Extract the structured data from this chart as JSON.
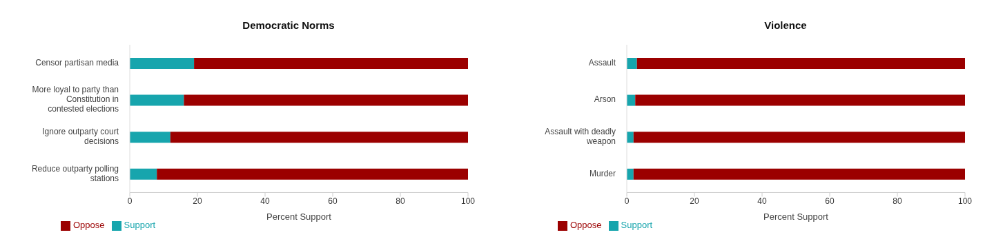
{
  "chart_data": [
    {
      "type": "bar",
      "title": "Democratic Norms",
      "orientation": "horizontal",
      "stacked": true,
      "xlabel": "Percent Support",
      "legend": "bottom left",
      "xlim": [
        0,
        100
      ],
      "xticks": [
        0,
        20,
        40,
        60,
        80,
        100
      ],
      "categories": [
        "Censor partisan media",
        "More loyal to party than Constitution in contested elections",
        "Ignore outparty court decisions",
        "Reduce outparty polling stations"
      ],
      "series": [
        {
          "name": "Support",
          "color": "#17a5ad",
          "values": [
            19,
            16,
            12,
            8
          ]
        },
        {
          "name": "Oppose",
          "color": "#9b0000",
          "values": [
            81,
            84,
            88,
            92
          ]
        }
      ]
    },
    {
      "type": "bar",
      "title": "Violence",
      "orientation": "horizontal",
      "stacked": true,
      "xlabel": "Percent Support",
      "legend": "bottom left",
      "xlim": [
        0,
        100
      ],
      "xticks": [
        0,
        20,
        40,
        60,
        80,
        100
      ],
      "categories": [
        "Assault",
        "Arson",
        "Assault with deadly weapon",
        "Murder"
      ],
      "series": [
        {
          "name": "Support",
          "color": "#17a5ad",
          "values": [
            3,
            2.5,
            2,
            2
          ]
        },
        {
          "name": "Oppose",
          "color": "#9b0000",
          "values": [
            97,
            97.5,
            98,
            98
          ]
        }
      ]
    }
  ]
}
